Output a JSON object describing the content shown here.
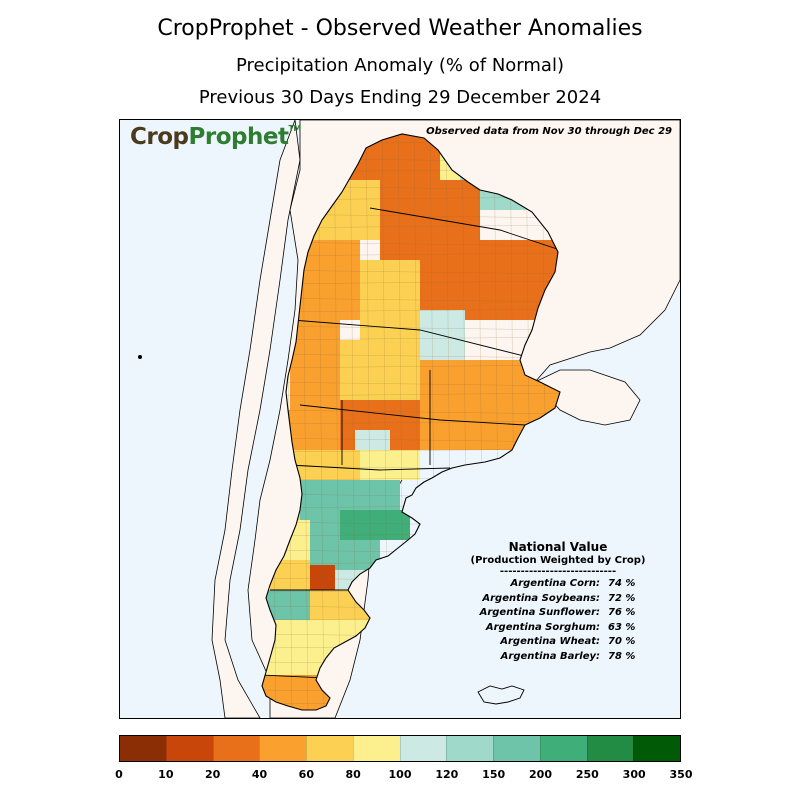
{
  "title": {
    "line1": "CropProphet - Observed Weather Anomalies",
    "line2": "Precipitation Anomaly (% of Normal)",
    "line3": "Previous 30 Days Ending 29 December 2024"
  },
  "logo": {
    "crop": "Crop",
    "prophet": "Prophet",
    "tm": "TM"
  },
  "observed_note": "Observed data from Nov 30 through Dec 29",
  "national_value": {
    "title": "National Value",
    "subtitle": "(Production Weighted by Crop)",
    "separator": "----------------------------",
    "rows": [
      {
        "crop": "Argentina Corn:",
        "value": "74 %"
      },
      {
        "crop": "Argentina Soybeans:",
        "value": "72 %"
      },
      {
        "crop": "Argentina Sunflower:",
        "value": "76 %"
      },
      {
        "crop": "Argentina Sorghum:",
        "value": "63 %"
      },
      {
        "crop": "Argentina Wheat:",
        "value": "70 %"
      },
      {
        "crop": "Argentina Barley:",
        "value": "78 %"
      }
    ]
  },
  "colorbar": {
    "colors": [
      "#8b2e06",
      "#c9460a",
      "#e8701b",
      "#f9a02f",
      "#fcd153",
      "#fbef8e",
      "#cceae3",
      "#9fd9ca",
      "#6ec4a8",
      "#3fae78",
      "#238c44",
      "#005a06"
    ],
    "ticks": [
      "0",
      "10",
      "20",
      "40",
      "60",
      "80",
      "100",
      "120",
      "150",
      "200",
      "250",
      "300",
      "350"
    ]
  },
  "map_colors": {
    "ocean": "#eef6fd",
    "land_outside": "#fdf5ef",
    "border": "#000000"
  }
}
